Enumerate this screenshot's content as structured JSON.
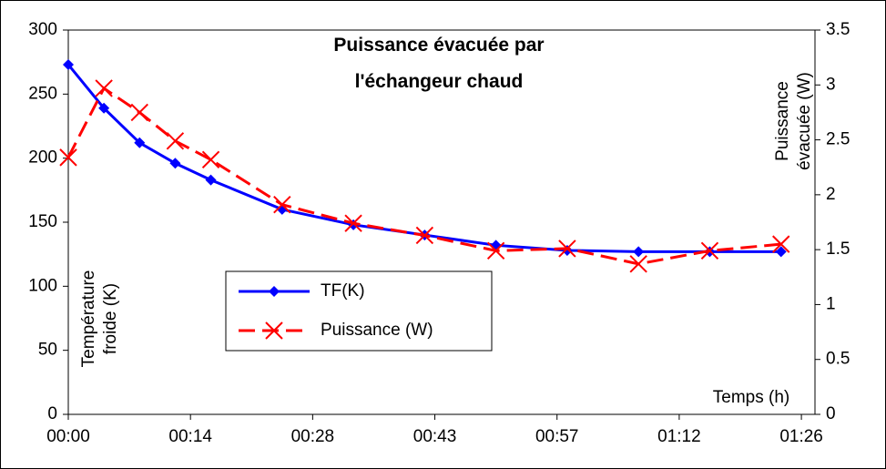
{
  "chart_data": {
    "type": "line",
    "title": "Puissance évacuée par l'échangeur chaud",
    "ylabel": "Température froide (K)",
    "y2label": "Puissance évacuée (W)",
    "xlabel": "Temps (h)",
    "x": [
      0,
      4.2,
      8.4,
      12.6,
      16.8,
      25.2,
      33.6,
      42,
      50.4,
      58.8,
      67.2,
      75.6,
      84
    ],
    "series": [
      {
        "name": "TF(K)",
        "color": "#0000ff",
        "marker": "diamond",
        "dash": false,
        "values": [
          273,
          239,
          212,
          196,
          183,
          160,
          148,
          140,
          132,
          128,
          127,
          127,
          127
        ]
      },
      {
        "name": "Puissance (W)",
        "color": "#ff0000",
        "marker": "x",
        "dash": true,
        "axis": "y2",
        "values": [
          2.34,
          2.97,
          2.75,
          2.49,
          2.32,
          1.91,
          1.74,
          1.63,
          1.49,
          1.51,
          1.37,
          1.49,
          1.55
        ]
      }
    ],
    "xlim": [
      0,
      88
    ],
    "xticks": [
      {
        "value": 0,
        "label": "00:00"
      },
      {
        "value": 14.4,
        "label": "00:14"
      },
      {
        "value": 28.8,
        "label": "00:28"
      },
      {
        "value": 43.2,
        "label": "00:43"
      },
      {
        "value": 57.6,
        "label": "00:57"
      },
      {
        "value": 72,
        "label": "01:12"
      },
      {
        "value": 86.4,
        "label": "01:26"
      }
    ],
    "ylim": [
      0,
      300
    ],
    "yticks": [
      0,
      50,
      100,
      150,
      200,
      250,
      300
    ],
    "y2lim": [
      0,
      3.5
    ],
    "y2ticks": [
      0,
      0.5,
      1,
      1.5,
      2,
      2.5,
      3,
      3.5
    ],
    "grid": false
  }
}
